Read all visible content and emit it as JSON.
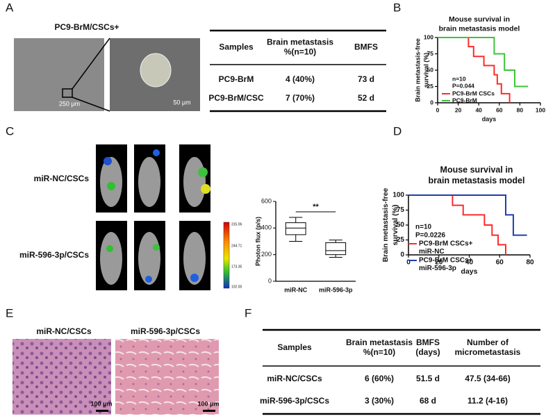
{
  "panel_labels": [
    "A",
    "B",
    "C",
    "D",
    "E",
    "F"
  ],
  "panel_a": {
    "title": "PC9-BrM/CSCs+",
    "scale_bars": [
      "250 μm",
      "50 μm"
    ]
  },
  "table_a": {
    "header": [
      [
        "Samples"
      ],
      [
        "Brain metastasis",
        "%(n=10)"
      ],
      [
        "BMFS"
      ]
    ],
    "rows": [
      [
        "PC9-BrM",
        "4 (40%)",
        "73 d"
      ],
      [
        "PC9-BrM/CSC",
        "7 (70%)",
        "52 d"
      ]
    ]
  },
  "panel_c": {
    "rows": [
      "miR-NC/CSCs",
      "miR-596-3p/CSCs"
    ],
    "colorbar": [
      "315.06",
      "244.71",
      "173.35",
      "102.00"
    ]
  },
  "panel_e": {
    "titles": [
      "miR-NC/CSCs",
      "miR-596-3p/CSCs"
    ],
    "scale_bars": [
      "100 μm",
      "100 μm"
    ]
  },
  "table_f": {
    "header": [
      [
        "Samples"
      ],
      [
        "Brain metastasis",
        "%(n=10)"
      ],
      [
        "BMFS",
        "(days)"
      ],
      [
        "Number of",
        "micrometastasis"
      ]
    ],
    "rows": [
      [
        "miR-NC/CSCs",
        "6 (60%)",
        "51.5 d",
        "47.5 (34-66)"
      ],
      [
        "miR-596-3p/CSCs",
        "3 (30%)",
        "68 d",
        "11.2 (4-16)"
      ]
    ]
  },
  "chart_data": [
    {
      "type": "survival",
      "title": [
        "Mouse survival in",
        "brain metastasis model"
      ],
      "ylabel": [
        "Brain metastasis-free",
        "survival (%)"
      ],
      "xlabel": "days",
      "annotations": [
        "n=10",
        "P=0.044"
      ],
      "xlim": [
        0,
        100
      ],
      "ylim": [
        0,
        100
      ],
      "xticks": [
        0,
        20,
        40,
        60,
        80,
        100
      ],
      "yticks": [
        0,
        25,
        50,
        75,
        100
      ],
      "series": [
        {
          "name": [
            "PC9-BrM CSCs"
          ],
          "color": "#ff2a2a",
          "x": [
            0,
            30,
            30,
            35,
            35,
            45,
            45,
            55,
            55,
            58,
            58,
            62,
            62,
            70,
            70
          ],
          "values": [
            100,
            100,
            86,
            86,
            71,
            71,
            57,
            57,
            43,
            43,
            29,
            29,
            14,
            14,
            0
          ]
        },
        {
          "name": [
            "PC9-BrM"
          ],
          "color": "#3cc33c",
          "x": [
            0,
            55,
            55,
            65,
            65,
            75,
            75,
            88
          ],
          "values": [
            100,
            100,
            75,
            75,
            50,
            50,
            25,
            25
          ]
        }
      ]
    },
    {
      "type": "box",
      "ylabel": "Photon flux (p/s)",
      "annotation": "**",
      "categories": [
        "miR-NC",
        "miR-596-3p"
      ],
      "ylim": [
        0,
        600
      ],
      "yticks": [
        0,
        200,
        400,
        600
      ],
      "stats": [
        {
          "min": 300,
          "q1": 350,
          "median": 400,
          "q3": 440,
          "max": 480
        },
        {
          "min": 180,
          "q1": 200,
          "median": 230,
          "q3": 290,
          "max": 310
        }
      ]
    },
    {
      "type": "survival",
      "title": [
        "Mouse survival in",
        "brain metastasis model"
      ],
      "ylabel": [
        "Brain metastasis-free",
        "survival (%)"
      ],
      "xlabel": "days",
      "annotations": [
        "n=10",
        "P=0.0226"
      ],
      "xlim": [
        0,
        80
      ],
      "ylim": [
        0,
        100
      ],
      "xticks": [
        0,
        20,
        40,
        60,
        80
      ],
      "yticks": [
        0,
        25,
        50,
        75,
        100
      ],
      "series": [
        {
          "name": [
            "PC9-BrM CSCs+",
            "miR-NC"
          ],
          "color": "#ff2a2a",
          "x": [
            0,
            29,
            29,
            36,
            36,
            50,
            50,
            55,
            55,
            59,
            59,
            64,
            64
          ],
          "values": [
            100,
            100,
            83,
            83,
            67,
            67,
            50,
            50,
            33,
            33,
            17,
            17,
            0
          ]
        },
        {
          "name": [
            "PC9-BrM CSCs+",
            "miR-596-3p"
          ],
          "color": "#1f3fa8",
          "x": [
            0,
            64,
            64,
            69,
            69,
            78
          ],
          "values": [
            100,
            100,
            67,
            67,
            33,
            33
          ]
        }
      ]
    }
  ]
}
